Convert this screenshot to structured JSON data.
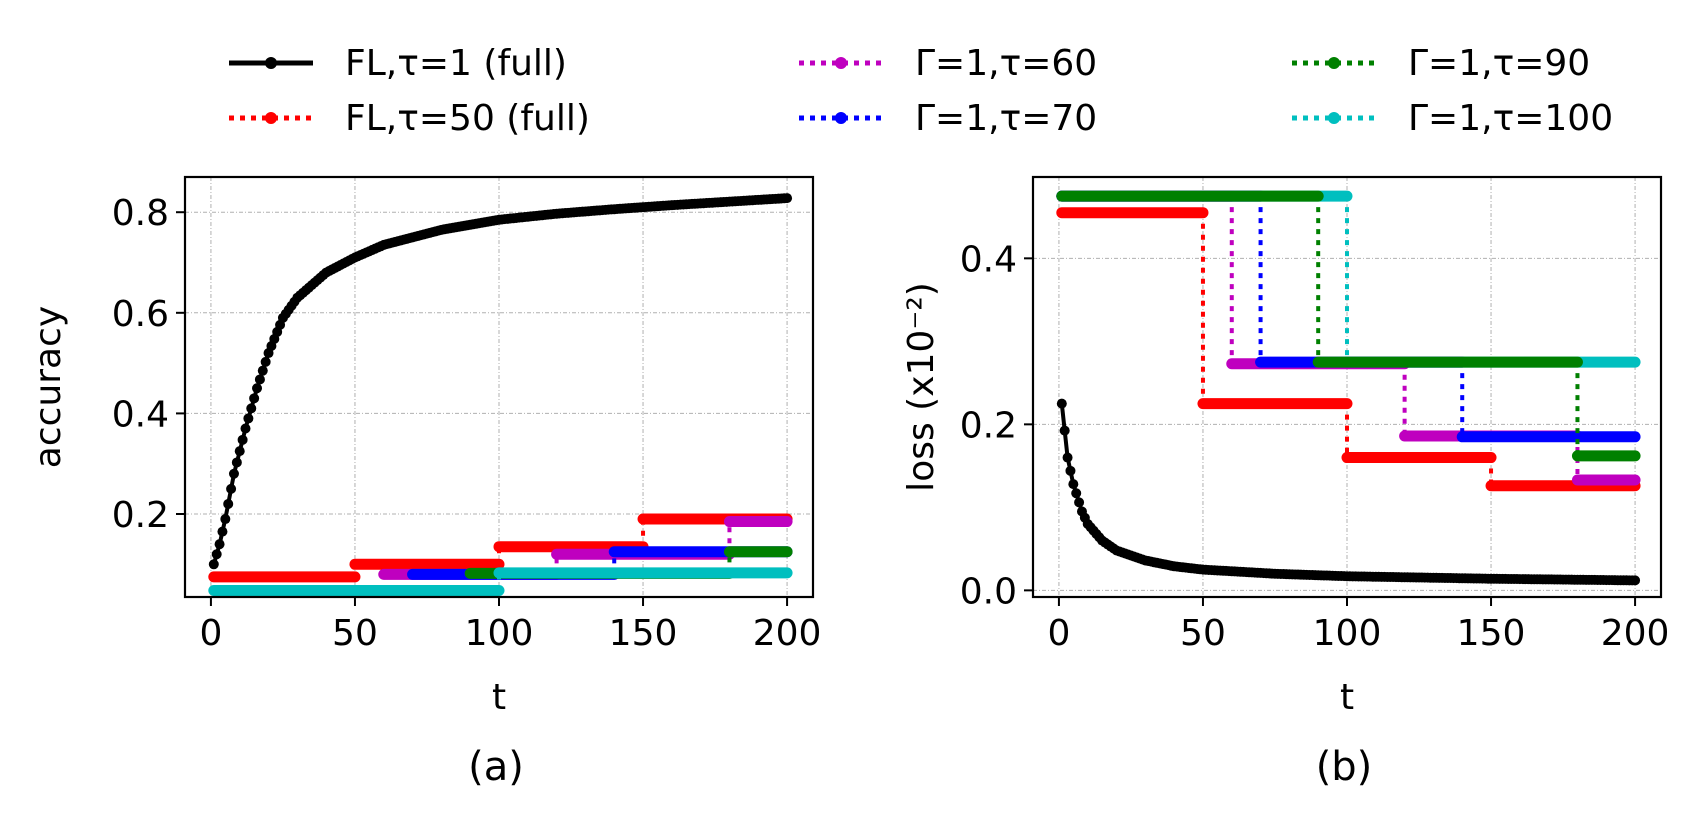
{
  "chart_data": [
    {
      "type": "line",
      "panel_label": "(a)",
      "xlabel": "t",
      "ylabel": "accuracy",
      "xlim": [
        -9,
        209
      ],
      "ylim": [
        0.035,
        0.87
      ],
      "xticks": [
        0,
        50,
        100,
        150,
        200
      ],
      "xtick_labels": [
        "0",
        "50",
        "100",
        "150",
        "200"
      ],
      "yticks": [
        0.2,
        0.4,
        0.6,
        0.8
      ],
      "ytick_labels": [
        "0.2",
        "0.4",
        "0.6",
        "0.8"
      ],
      "grid": true,
      "series": [
        {
          "name": "FL,τ=50 (full)",
          "color": "#ff0000",
          "style": "dotted",
          "segments": [
            {
              "x0": 1,
              "x1": 50,
              "y": 0.075
            },
            {
              "x0": 50,
              "x1": 100,
              "y": 0.1
            },
            {
              "x0": 100,
              "x1": 150,
              "y": 0.135
            },
            {
              "x0": 150,
              "x1": 200,
              "y": 0.19
            }
          ]
        },
        {
          "name": "Γ=1,τ=60",
          "color": "#bf00bf",
          "style": "dotted",
          "segments": [
            {
              "x0": 60,
              "x1": 120,
              "y": 0.08
            },
            {
              "x0": 120,
              "x1": 180,
              "y": 0.12
            },
            {
              "x0": 180,
              "x1": 200,
              "y": 0.185
            }
          ]
        },
        {
          "name": "Γ=1,τ=70",
          "color": "#0000ff",
          "style": "dotted",
          "segments": [
            {
              "x0": 70,
              "x1": 140,
              "y": 0.08
            },
            {
              "x0": 140,
              "x1": 200,
              "y": 0.125
            }
          ]
        },
        {
          "name": "Γ=1,τ=90",
          "color": "#008000",
          "style": "dotted",
          "segments": [
            {
              "x0": 90,
              "x1": 180,
              "y": 0.082
            },
            {
              "x0": 180,
              "x1": 200,
              "y": 0.125
            }
          ]
        },
        {
          "name": "Γ=1,τ=100",
          "color": "#00bfbf",
          "style": "dotted",
          "segments": [
            {
              "x0": 1,
              "x1": 100,
              "y": 0.048
            },
            {
              "x0": 100,
              "x1": 200,
              "y": 0.083
            }
          ]
        },
        {
          "name": "FL,τ=1 (full)",
          "color": "#000000",
          "style": "solid",
          "curve": "accuracy",
          "points": [
            [
              1,
              0.1
            ],
            [
              3,
              0.14
            ],
            [
              5,
              0.19
            ],
            [
              8,
              0.28
            ],
            [
              12,
              0.37
            ],
            [
              16,
              0.45
            ],
            [
              20,
              0.52
            ],
            [
              25,
              0.59
            ],
            [
              30,
              0.63
            ],
            [
              40,
              0.68
            ],
            [
              50,
              0.71
            ],
            [
              60,
              0.735
            ],
            [
              70,
              0.75
            ],
            [
              80,
              0.765
            ],
            [
              90,
              0.775
            ],
            [
              100,
              0.785
            ],
            [
              120,
              0.797
            ],
            [
              140,
              0.806
            ],
            [
              160,
              0.814
            ],
            [
              180,
              0.821
            ],
            [
              200,
              0.828
            ]
          ]
        }
      ]
    },
    {
      "type": "line",
      "panel_label": "(b)",
      "xlabel": "t",
      "ylabel": "loss (x10⁻²)",
      "xlim": [
        -9,
        209
      ],
      "ylim": [
        -0.008,
        0.498
      ],
      "xticks": [
        0,
        50,
        100,
        150,
        200
      ],
      "xtick_labels": [
        "0",
        "50",
        "100",
        "150",
        "200"
      ],
      "yticks": [
        0.0,
        0.2,
        0.4
      ],
      "ytick_labels": [
        "0.0",
        "0.2",
        "0.4"
      ],
      "grid": true,
      "series": [
        {
          "name": "Γ=1,τ=100",
          "color": "#00bfbf",
          "style": "dotted",
          "segments": [
            {
              "x0": 1,
              "x1": 100,
              "y": 0.475
            },
            {
              "x0": 100,
              "x1": 200,
              "y": 0.275
            }
          ]
        },
        {
          "name": "FL,τ=50 (full)",
          "color": "#ff0000",
          "style": "dotted",
          "segments": [
            {
              "x0": 1,
              "x1": 50,
              "y": 0.455
            },
            {
              "x0": 50,
              "x1": 100,
              "y": 0.225
            },
            {
              "x0": 100,
              "x1": 150,
              "y": 0.16
            },
            {
              "x0": 150,
              "x1": 200,
              "y": 0.126
            }
          ]
        },
        {
          "name": "Γ=1,τ=60",
          "color": "#bf00bf",
          "style": "dotted",
          "segments": [
            {
              "x0": 1,
              "x1": 60,
              "y": 0.475
            },
            {
              "x0": 60,
              "x1": 120,
              "y": 0.273
            },
            {
              "x0": 120,
              "x1": 180,
              "y": 0.186
            },
            {
              "x0": 180,
              "x1": 200,
              "y": 0.133
            }
          ]
        },
        {
          "name": "Γ=1,τ=70",
          "color": "#0000ff",
          "style": "dotted",
          "segments": [
            {
              "x0": 1,
              "x1": 70,
              "y": 0.475
            },
            {
              "x0": 70,
              "x1": 140,
              "y": 0.275
            },
            {
              "x0": 140,
              "x1": 200,
              "y": 0.185
            }
          ]
        },
        {
          "name": "Γ=1,τ=90",
          "color": "#008000",
          "style": "dotted",
          "segments": [
            {
              "x0": 1,
              "x1": 90,
              "y": 0.475
            },
            {
              "x0": 90,
              "x1": 180,
              "y": 0.275
            },
            {
              "x0": 180,
              "x1": 200,
              "y": 0.162
            }
          ]
        },
        {
          "name": "FL,τ=1 (full)",
          "color": "#000000",
          "style": "solid",
          "curve": "loss",
          "points": [
            [
              1,
              0.225
            ],
            [
              3,
              0.16
            ],
            [
              5,
              0.128
            ],
            [
              8,
              0.095
            ],
            [
              10,
              0.08
            ],
            [
              15,
              0.06
            ],
            [
              20,
              0.048
            ],
            [
              30,
              0.036
            ],
            [
              40,
              0.029
            ],
            [
              50,
              0.025
            ],
            [
              75,
              0.02
            ],
            [
              100,
              0.017
            ],
            [
              150,
              0.014
            ],
            [
              200,
              0.012
            ]
          ]
        }
      ]
    }
  ],
  "legend": {
    "placement": "top",
    "entries": [
      {
        "label": "FL,τ=1 (full)",
        "color": "#000000",
        "style": "solid"
      },
      {
        "label": "FL,τ=50 (full)",
        "color": "#ff0000",
        "style": "dotted"
      },
      {
        "label": "Γ=1,τ=60",
        "color": "#bf00bf",
        "style": "dotted"
      },
      {
        "label": "Γ=1,τ=70",
        "color": "#0000ff",
        "style": "dotted"
      },
      {
        "label": "Γ=1,τ=90",
        "color": "#008000",
        "style": "dotted"
      },
      {
        "label": "Γ=1,τ=100",
        "color": "#00bfbf",
        "style": "dotted"
      }
    ]
  }
}
